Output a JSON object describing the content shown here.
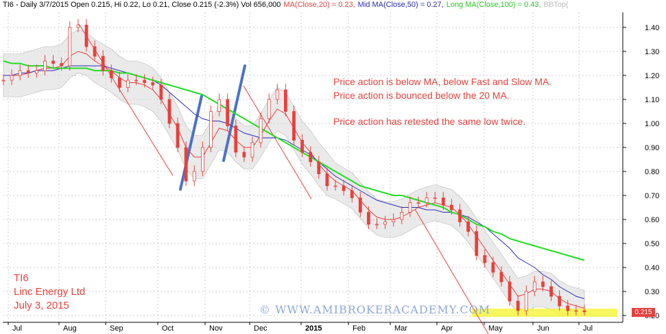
{
  "header": {
    "ticker_info": "TI6 - Daily 3/7/2015 Open 0.215, Hi 0.22, Lo 0.21, Close 0.215 (-2.3%) Vol 656,000",
    "ma20": "MA(Close,20) = 0.23,",
    "ma50": "Mid MA(Close,50) = 0.27,",
    "ma100": "Long MA(Close,100) = 0.43,",
    "bbtop": "BBTop("
  },
  "annotations": [
    "Price action is below MA, below Fast and Slow MA.",
    "Price action is bounced below the 20 MA.",
    "Price action has retested the same low twice."
  ],
  "stock_label": [
    "TI6",
    "Linc Energy Ltd",
    "July 3, 2015"
  ],
  "watermark": "© WWW.AMIBROKERACADEMY.COM",
  "last_price_label": "0.215",
  "colors": {
    "candle": "#e8403c",
    "ma20": "#e8403c",
    "ma50": "#2a2ab8",
    "ma100": "#22dd22",
    "band": "#d9d9d9",
    "trendline": "#4a72c8",
    "highlight": "#f5f542",
    "annotation": "#e8403c"
  },
  "chart_data": {
    "type": "line",
    "y_ticks": [
      "1.40",
      "1.30",
      "1.20",
      "1.10",
      "1.00",
      "0.90",
      "0.80",
      "0.70",
      "0.60",
      "0.50",
      "0.40",
      "0.30",
      "0.20"
    ],
    "x_ticks": [
      "Jul",
      "Aug",
      "Sep",
      "Oct",
      "Nov",
      "Dec",
      "2015",
      "Feb",
      "Mar",
      "Apr",
      "May",
      "Jun",
      "Jul"
    ],
    "ylim": [
      0.2,
      1.45
    ],
    "grid": true,
    "series": [
      {
        "key": "price",
        "values": [
          1.18,
          1.2,
          1.22,
          1.21,
          1.22,
          1.26,
          1.25,
          1.24,
          1.4,
          1.41,
          1.32,
          1.28,
          1.22,
          1.19,
          1.15,
          1.18,
          1.18,
          1.17,
          1.16,
          1.1,
          1.0,
          0.9,
          0.76,
          0.8,
          0.9,
          1.05,
          1.1,
          0.99,
          0.88,
          0.86,
          0.92,
          1.02,
          1.1,
          1.14,
          1.05,
          0.93,
          0.88,
          0.84,
          0.79,
          0.74,
          0.74,
          0.72,
          0.69,
          0.63,
          0.58,
          0.58,
          0.59,
          0.6,
          0.63,
          0.67,
          0.67,
          0.69,
          0.69,
          0.66,
          0.64,
          0.59,
          0.55,
          0.45,
          0.42,
          0.38,
          0.34,
          0.26,
          0.22,
          0.3,
          0.34,
          0.32,
          0.28,
          0.24,
          0.22,
          0.22,
          0.215
        ]
      },
      {
        "key": "ma20",
        "values": [
          1.2,
          1.2,
          1.2,
          1.21,
          1.22,
          1.23,
          1.23,
          1.24,
          1.28,
          1.3,
          1.29,
          1.26,
          1.24,
          1.22,
          1.19,
          1.17,
          1.17,
          1.16,
          1.14,
          1.1,
          1.04,
          0.98,
          0.9,
          0.86,
          0.86,
          0.92,
          0.98,
          0.97,
          0.93,
          0.9,
          0.9,
          0.95,
          1.01,
          1.06,
          1.04,
          0.98,
          0.92,
          0.88,
          0.83,
          0.79,
          0.76,
          0.74,
          0.72,
          0.68,
          0.64,
          0.61,
          0.6,
          0.6,
          0.61,
          0.63,
          0.65,
          0.66,
          0.67,
          0.66,
          0.65,
          0.62,
          0.58,
          0.53,
          0.48,
          0.43,
          0.38,
          0.33,
          0.28,
          0.29,
          0.31,
          0.31,
          0.3,
          0.27,
          0.25,
          0.24,
          0.23
        ]
      },
      {
        "key": "ma50",
        "values": [
          1.2,
          1.2,
          1.21,
          1.21,
          1.22,
          1.22,
          1.22,
          1.23,
          1.24,
          1.24,
          1.24,
          1.24,
          1.24,
          1.23,
          1.22,
          1.21,
          1.2,
          1.19,
          1.18,
          1.16,
          1.13,
          1.1,
          1.07,
          1.04,
          1.02,
          1.01,
          1.01,
          1.0,
          0.98,
          0.96,
          0.95,
          0.94,
          0.94,
          0.94,
          0.93,
          0.91,
          0.89,
          0.87,
          0.84,
          0.81,
          0.78,
          0.76,
          0.74,
          0.72,
          0.7,
          0.68,
          0.67,
          0.66,
          0.65,
          0.65,
          0.65,
          0.64,
          0.64,
          0.63,
          0.63,
          0.62,
          0.61,
          0.59,
          0.57,
          0.54,
          0.51,
          0.48,
          0.44,
          0.42,
          0.4,
          0.37,
          0.35,
          0.32,
          0.3,
          0.28,
          0.27
        ]
      },
      {
        "key": "ma100",
        "values": [
          1.26,
          1.25,
          1.25,
          1.24,
          1.24,
          1.24,
          1.23,
          1.23,
          1.23,
          1.23,
          1.23,
          1.22,
          1.22,
          1.22,
          1.21,
          1.21,
          1.2,
          1.19,
          1.18,
          1.17,
          1.16,
          1.15,
          1.14,
          1.13,
          1.12,
          1.1,
          1.08,
          1.06,
          1.04,
          1.02,
          1.0,
          0.98,
          0.96,
          0.94,
          0.92,
          0.9,
          0.88,
          0.86,
          0.84,
          0.82,
          0.8,
          0.78,
          0.76,
          0.74,
          0.73,
          0.72,
          0.71,
          0.7,
          0.7,
          0.69,
          0.68,
          0.67,
          0.66,
          0.65,
          0.63,
          0.62,
          0.6,
          0.58,
          0.57,
          0.55,
          0.54,
          0.52,
          0.51,
          0.5,
          0.49,
          0.48,
          0.47,
          0.46,
          0.45,
          0.44,
          0.43
        ]
      }
    ]
  }
}
